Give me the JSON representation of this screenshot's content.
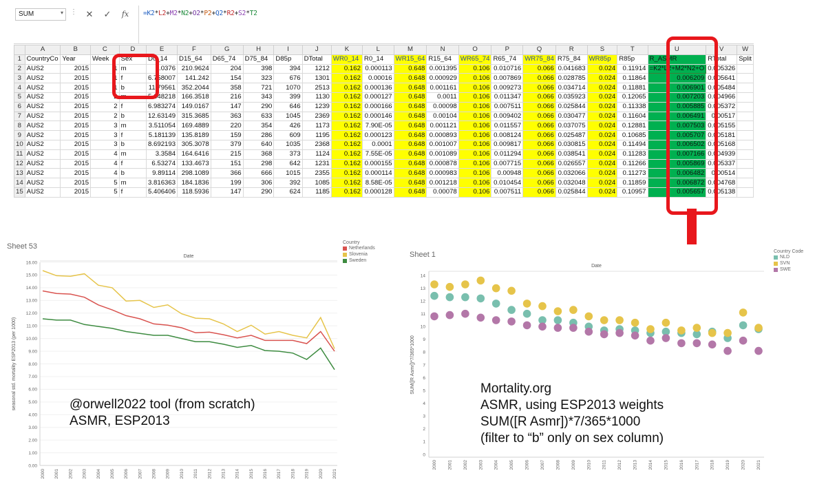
{
  "excel": {
    "name_box": "SUM",
    "formula_bar": {
      "cancel_label": "✕",
      "enter_label": "✓",
      "function_label": "fx",
      "formula_segments": [
        {
          "text": "=K2",
          "color": "#1f5fc2"
        },
        {
          "text": "*",
          "color": "#222222"
        },
        {
          "text": "L2",
          "color": "#c0292b"
        },
        {
          "text": "+",
          "color": "#222222"
        },
        {
          "text": "M2",
          "color": "#8a3fb0"
        },
        {
          "text": "*",
          "color": "#222222"
        },
        {
          "text": "N2",
          "color": "#1c8a3a"
        },
        {
          "text": "+",
          "color": "#222222"
        },
        {
          "text": "O2",
          "color": "#7030a0"
        },
        {
          "text": "*",
          "color": "#222222"
        },
        {
          "text": "P2",
          "color": "#c55a11"
        },
        {
          "text": "+",
          "color": "#222222"
        },
        {
          "text": "Q2",
          "color": "#1f5fc2"
        },
        {
          "text": "*",
          "color": "#222222"
        },
        {
          "text": "R2",
          "color": "#c0292b"
        },
        {
          "text": "+",
          "color": "#222222"
        },
        {
          "text": "S2",
          "color": "#8a3fb0"
        },
        {
          "text": "*",
          "color": "#222222"
        },
        {
          "text": "T2",
          "color": "#1c8a3a"
        }
      ]
    },
    "column_letters": [
      "A",
      "B",
      "C",
      "D",
      "E",
      "F",
      "G",
      "H",
      "I",
      "J",
      "K",
      "L",
      "M",
      "N",
      "O",
      "P",
      "Q",
      "R",
      "S",
      "T",
      "U",
      "V",
      "W"
    ],
    "header_row": [
      "CountryCo",
      "Year",
      "Week",
      "Sex",
      "D0_14",
      "D15_64",
      "D65_74",
      "D75_84",
      "D85p",
      "DTotal",
      "WR0_14",
      "R0_14",
      "WR15_64",
      "R15_64",
      "WR65_74",
      "R65_74",
      "WR75_84",
      "R75_84",
      "WR85p",
      "R85p",
      "R_ASMR",
      "RTotal",
      "Split"
    ],
    "rows": [
      [
        "AUS2",
        "2015",
        "1",
        "m",
        "5.0376",
        "210.9624",
        "204",
        "398",
        "394",
        "1212",
        "0.162",
        "0.000113",
        "0.648",
        "0.001395",
        "0.106",
        "0.010716",
        "0.066",
        "0.041683",
        "0.024",
        "0.11914",
        "=K2*L2+M2*N2+O",
        "0.005326",
        ""
      ],
      [
        "AUS2",
        "2015",
        "1",
        "f",
        "6.758007",
        "141.242",
        "154",
        "323",
        "676",
        "1301",
        "0.162",
        "0.00016",
        "0.648",
        "0.000929",
        "0.106",
        "0.007869",
        "0.066",
        "0.028785",
        "0.024",
        "0.11864",
        "0.006209",
        "0.005641",
        ""
      ],
      [
        "AUS2",
        "2015",
        "1",
        "b",
        "11.79561",
        "352.2044",
        "358",
        "721",
        "1070",
        "2513",
        "0.162",
        "0.000136",
        "0.648",
        "0.001161",
        "0.106",
        "0.009273",
        "0.066",
        "0.034714",
        "0.024",
        "0.11881",
        "0.006901",
        "0.005484",
        ""
      ],
      [
        "AUS2",
        "2015",
        "2",
        "m",
        "5.648218",
        "166.3518",
        "216",
        "343",
        "399",
        "1130",
        "0.162",
        "0.000127",
        "0.648",
        "0.0011",
        "0.106",
        "0.011347",
        "0.066",
        "0.035923",
        "0.024",
        "0.12065",
        "0.007203",
        "0.004966",
        ""
      ],
      [
        "AUS2",
        "2015",
        "2",
        "f",
        "6.983274",
        "149.0167",
        "147",
        "290",
        "646",
        "1239",
        "0.162",
        "0.000166",
        "0.648",
        "0.00098",
        "0.106",
        "0.007511",
        "0.066",
        "0.025844",
        "0.024",
        "0.11338",
        "0.005885",
        "0.005372",
        ""
      ],
      [
        "AUS2",
        "2015",
        "2",
        "b",
        "12.63149",
        "315.3685",
        "363",
        "633",
        "1045",
        "2369",
        "0.162",
        "0.000146",
        "0.648",
        "0.00104",
        "0.106",
        "0.009402",
        "0.066",
        "0.030477",
        "0.024",
        "0.11604",
        "0.006491",
        "0.00517",
        ""
      ],
      [
        "AUS2",
        "2015",
        "3",
        "m",
        "3.511054",
        "169.4889",
        "220",
        "354",
        "426",
        "1173",
        "0.162",
        "7.90E-05",
        "0.648",
        "0.001121",
        "0.106",
        "0.011557",
        "0.066",
        "0.037075",
        "0.024",
        "0.12881",
        "0.007503",
        "0.005155",
        ""
      ],
      [
        "AUS2",
        "2015",
        "3",
        "f",
        "5.181139",
        "135.8189",
        "159",
        "286",
        "609",
        "1195",
        "0.162",
        "0.000123",
        "0.648",
        "0.000893",
        "0.106",
        "0.008124",
        "0.066",
        "0.025487",
        "0.024",
        "0.10685",
        "0.005707",
        "0.005181",
        ""
      ],
      [
        "AUS2",
        "2015",
        "3",
        "b",
        "8.692193",
        "305.3078",
        "379",
        "640",
        "1035",
        "2368",
        "0.162",
        "0.0001",
        "0.648",
        "0.001007",
        "0.106",
        "0.009817",
        "0.066",
        "0.030815",
        "0.024",
        "0.11494",
        "0.006502",
        "0.005168",
        ""
      ],
      [
        "AUS2",
        "2015",
        "4",
        "m",
        "3.3584",
        "164.6416",
        "215",
        "368",
        "373",
        "1124",
        "0.162",
        "7.55E-05",
        "0.648",
        "0.001089",
        "0.106",
        "0.011294",
        "0.066",
        "0.038541",
        "0.024",
        "0.11283",
        "0.007166",
        "0.004939",
        ""
      ],
      [
        "AUS2",
        "2015",
        "4",
        "f",
        "6.53274",
        "133.4673",
        "151",
        "298",
        "642",
        "1231",
        "0.162",
        "0.000155",
        "0.648",
        "0.000878",
        "0.106",
        "0.007715",
        "0.066",
        "0.026557",
        "0.024",
        "0.11266",
        "0.005869",
        "0.005337",
        ""
      ],
      [
        "AUS2",
        "2015",
        "4",
        "b",
        "9.89114",
        "298.1089",
        "366",
        "666",
        "1015",
        "2355",
        "0.162",
        "0.000114",
        "0.648",
        "0.000983",
        "0.106",
        "0.00948",
        "0.066",
        "0.032066",
        "0.024",
        "0.11273",
        "0.006482",
        "0.00514",
        ""
      ],
      [
        "AUS2",
        "2015",
        "5",
        "m",
        "3.816363",
        "184.1836",
        "199",
        "306",
        "392",
        "1085",
        "0.162",
        "8.58E-05",
        "0.648",
        "0.001218",
        "0.106",
        "0.010454",
        "0.066",
        "0.032048",
        "0.024",
        "0.11859",
        "0.006872",
        "0.004768",
        ""
      ],
      [
        "AUS2",
        "2015",
        "5",
        "f",
        "5.406406",
        "118.5936",
        "147",
        "290",
        "624",
        "1185",
        "0.162",
        "0.000128",
        "0.648",
        "0.00078",
        "0.106",
        "0.007511",
        "0.066",
        "0.025844",
        "0.024",
        "0.10957",
        "0.005657",
        "0.005138",
        ""
      ]
    ],
    "row_numbers": [
      "1",
      "2",
      "3",
      "4",
      "5",
      "6",
      "7",
      "8",
      "9",
      "10",
      "11",
      "12",
      "13",
      "14",
      "15"
    ]
  },
  "colors": {
    "yellow_highlight": "#ffff00",
    "green_highlight": "#00b050",
    "red_annotation": "#e8171c",
    "netherlands": "#d9534f",
    "slovenia": "#e6c44a",
    "sweden": "#3d8b40",
    "nld": "#79bfae",
    "svn": "#e6c44a",
    "swe": "#b377a8"
  },
  "left_panel": {
    "sheet_title": "Sheet 53",
    "top_axis_title": "Date",
    "annotation_line1": "@orwell2022 tool (from scratch)",
    "annotation_line2": "ASMR, ESP2013",
    "legend_title": "Country",
    "legend_items": [
      "Netherlands",
      "Slovenia",
      "Sweden"
    ]
  },
  "right_panel": {
    "sheet_title": "Sheet 1",
    "top_axis_title": "Date",
    "annotation_lines": [
      "Mortality.org",
      "ASMR, using ESP2013 weights",
      "SUM([R Asmr])*7/365*1000",
      "(filter to “b” only on sex column)"
    ],
    "legend_title": "Country Code",
    "legend_items": [
      "NLD",
      "SVN",
      "SWE"
    ]
  },
  "chart_data": [
    {
      "type": "line",
      "title": "Date",
      "ylabel": "seasonal std. mortality ESP2013 (per 1000)",
      "ylim": [
        0,
        16
      ],
      "yticks": [
        "0.00",
        "1.00",
        "2.00",
        "3.00",
        "4.00",
        "5.00",
        "6.00",
        "7.00",
        "8.00",
        "9.00",
        "10.00",
        "11.00",
        "12.00",
        "13.00",
        "14.00",
        "15.00",
        "16.00"
      ],
      "x": [
        "2000",
        "2001",
        "2002",
        "2003",
        "2004",
        "2005",
        "2006",
        "2007",
        "2008",
        "2009",
        "2010",
        "2011",
        "2012",
        "2013",
        "2014",
        "2015",
        "2016",
        "2017",
        "2018",
        "2019",
        "2020",
        "2021"
      ],
      "series": [
        {
          "name": "Netherlands",
          "color": "#d9534f",
          "values": [
            13.75,
            13.55,
            13.5,
            13.25,
            12.65,
            12.25,
            11.8,
            11.55,
            11.15,
            11.05,
            10.85,
            10.45,
            10.5,
            10.3,
            10.05,
            10.25,
            9.85,
            9.85,
            9.85,
            9.6,
            10.55,
            9.0
          ]
        },
        {
          "name": "Slovenia",
          "color": "#e6c44a",
          "values": [
            15.35,
            14.95,
            14.9,
            15.1,
            14.2,
            14.0,
            12.95,
            13.0,
            12.45,
            12.65,
            11.95,
            11.6,
            11.55,
            11.15,
            10.55,
            11.05,
            10.35,
            10.55,
            10.25,
            10.05,
            11.65,
            9.2
          ]
        },
        {
          "name": "Sweden",
          "color": "#3d8b40",
          "values": [
            11.55,
            11.45,
            11.45,
            11.1,
            10.95,
            10.8,
            10.55,
            10.4,
            10.25,
            10.25,
            10.0,
            9.75,
            9.75,
            9.55,
            9.3,
            9.45,
            9.05,
            9.0,
            8.85,
            8.35,
            9.25,
            7.55
          ]
        }
      ]
    },
    {
      "type": "scatter",
      "title": "Date",
      "ylabel": "SUM([R Asmr])*7/365*1000",
      "ylim": [
        0,
        14
      ],
      "yticks": [
        "0",
        "1",
        "2",
        "3",
        "4",
        "5",
        "6",
        "7",
        "8",
        "9",
        "10",
        "11",
        "12",
        "13",
        "14"
      ],
      "x": [
        "2000",
        "2001",
        "2002",
        "2003",
        "2004",
        "2005",
        "2006",
        "2007",
        "2008",
        "2009",
        "2010",
        "2011",
        "2012",
        "2013",
        "2014",
        "2015",
        "2016",
        "2017",
        "2018",
        "2019",
        "2020",
        "2021"
      ],
      "series": [
        {
          "name": "NLD",
          "color": "#79bfae",
          "values": [
            12.4,
            12.3,
            12.3,
            12.2,
            11.8,
            11.3,
            11.0,
            10.5,
            10.5,
            10.3,
            10.0,
            9.7,
            9.8,
            9.7,
            9.5,
            9.6,
            9.5,
            9.4,
            9.6,
            9.1,
            10.1,
            9.8
          ]
        },
        {
          "name": "SVN",
          "color": "#e6c44a",
          "values": [
            13.3,
            13.1,
            13.3,
            13.6,
            13.0,
            12.8,
            11.8,
            11.6,
            11.2,
            11.3,
            10.8,
            10.5,
            10.5,
            10.3,
            9.8,
            10.3,
            9.7,
            9.9,
            9.5,
            9.5,
            11.1,
            9.9
          ]
        },
        {
          "name": "SWE",
          "color": "#b377a8",
          "values": [
            10.8,
            10.9,
            11.0,
            10.7,
            10.5,
            10.4,
            10.1,
            10.0,
            9.9,
            9.9,
            9.6,
            9.4,
            9.5,
            9.3,
            8.9,
            9.1,
            8.7,
            8.7,
            8.6,
            8.1,
            8.9,
            8.1
          ]
        }
      ]
    }
  ]
}
